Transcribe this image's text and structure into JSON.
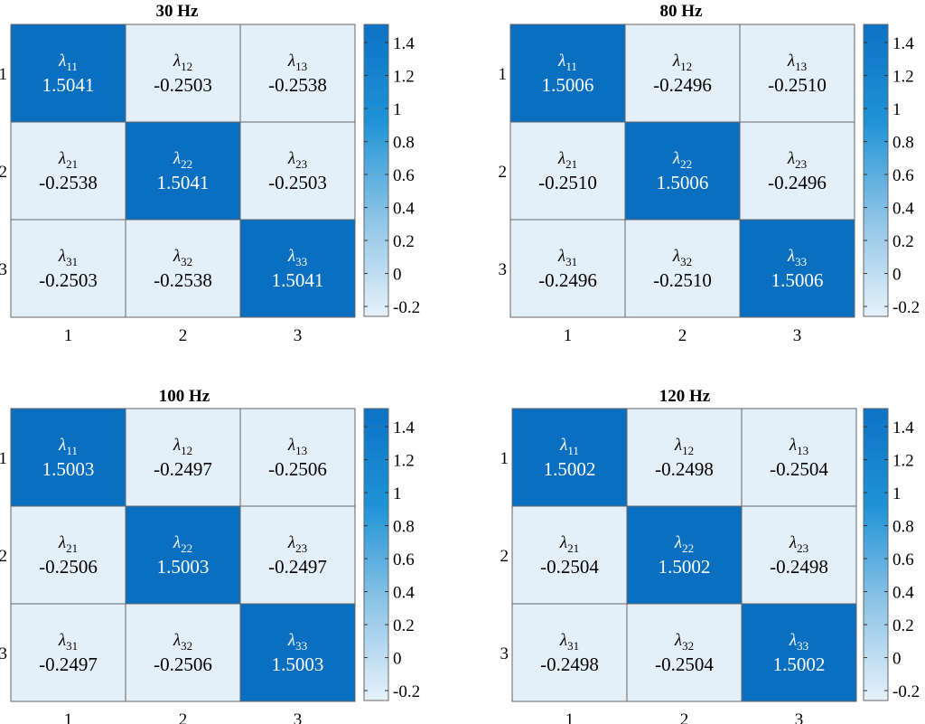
{
  "colors": {
    "low": "#e3f0f9",
    "high": "#0a6fc1",
    "colorbar_stops": [
      "#e6f1fa",
      "#8ec4e6",
      "#1f93d6",
      "#0c72c5"
    ],
    "grid": "#666666",
    "text_dark": "#000000",
    "text_light": "#ffffff"
  },
  "chart_data": [
    {
      "type": "heatmap",
      "title": "30 Hz",
      "x_ticks": [
        "1",
        "2",
        "3"
      ],
      "y_ticks": [
        "1",
        "2",
        "3"
      ],
      "cells": [
        [
          {
            "symbol": "λ",
            "sub": "11",
            "value": "1.5041"
          },
          {
            "symbol": "λ",
            "sub": "12",
            "value": "-0.2503"
          },
          {
            "symbol": "λ",
            "sub": "13",
            "value": "-0.2538"
          }
        ],
        [
          {
            "symbol": "λ",
            "sub": "21",
            "value": "-0.2538"
          },
          {
            "symbol": "λ",
            "sub": "22",
            "value": "1.5041"
          },
          {
            "symbol": "λ",
            "sub": "23",
            "value": "-0.2503"
          }
        ],
        [
          {
            "symbol": "λ",
            "sub": "31",
            "value": "-0.2503"
          },
          {
            "symbol": "λ",
            "sub": "32",
            "value": "-0.2538"
          },
          {
            "symbol": "λ",
            "sub": "33",
            "value": "1.5041"
          }
        ]
      ],
      "colorbar": {
        "ticks": [
          "1.4",
          "1.2",
          "1",
          "0.8",
          "0.6",
          "0.4",
          "0.2",
          "0",
          "-0.2"
        ],
        "range": [
          -0.26,
          1.51
        ]
      }
    },
    {
      "type": "heatmap",
      "title": "80 Hz",
      "x_ticks": [
        "1",
        "2",
        "3"
      ],
      "y_ticks": [
        "1",
        "2",
        "3"
      ],
      "cells": [
        [
          {
            "symbol": "λ",
            "sub": "11",
            "value": "1.5006"
          },
          {
            "symbol": "λ",
            "sub": "12",
            "value": "-0.2496"
          },
          {
            "symbol": "λ",
            "sub": "13",
            "value": "-0.2510"
          }
        ],
        [
          {
            "symbol": "λ",
            "sub": "21",
            "value": "-0.2510"
          },
          {
            "symbol": "λ",
            "sub": "22",
            "value": "1.5006"
          },
          {
            "symbol": "λ",
            "sub": "23",
            "value": "-0.2496"
          }
        ],
        [
          {
            "symbol": "λ",
            "sub": "31",
            "value": "-0.2496"
          },
          {
            "symbol": "λ",
            "sub": "32",
            "value": "-0.2510"
          },
          {
            "symbol": "λ",
            "sub": "33",
            "value": "1.5006"
          }
        ]
      ],
      "colorbar": {
        "ticks": [
          "1.4",
          "1.2",
          "1",
          "0.8",
          "0.6",
          "0.4",
          "0.2",
          "0",
          "-0.2"
        ],
        "range": [
          -0.26,
          1.51
        ]
      }
    },
    {
      "type": "heatmap",
      "title": "100 Hz",
      "x_ticks": [
        "1",
        "2",
        "3"
      ],
      "y_ticks": [
        "1",
        "2",
        "3"
      ],
      "cells": [
        [
          {
            "symbol": "λ",
            "sub": "11",
            "value": "1.5003"
          },
          {
            "symbol": "λ",
            "sub": "12",
            "value": "-0.2497"
          },
          {
            "symbol": "λ",
            "sub": "13",
            "value": "-0.2506"
          }
        ],
        [
          {
            "symbol": "λ",
            "sub": "21",
            "value": "-0.2506"
          },
          {
            "symbol": "λ",
            "sub": "22",
            "value": "1.5003"
          },
          {
            "symbol": "λ",
            "sub": "23",
            "value": "-0.2497"
          }
        ],
        [
          {
            "symbol": "λ",
            "sub": "31",
            "value": "-0.2497"
          },
          {
            "symbol": "λ",
            "sub": "32",
            "value": "-0.2506"
          },
          {
            "symbol": "λ",
            "sub": "33",
            "value": "1.5003"
          }
        ]
      ],
      "colorbar": {
        "ticks": [
          "1.4",
          "1.2",
          "1",
          "0.8",
          "0.6",
          "0.4",
          "0.2",
          "0",
          "-0.2"
        ],
        "range": [
          -0.26,
          1.51
        ]
      }
    },
    {
      "type": "heatmap",
      "title": "120 Hz",
      "x_ticks": [
        "1",
        "2",
        "3"
      ],
      "y_ticks": [
        "1",
        "2",
        "3"
      ],
      "cells": [
        [
          {
            "symbol": "λ",
            "sub": "11",
            "value": "1.5002"
          },
          {
            "symbol": "λ",
            "sub": "12",
            "value": "-0.2498"
          },
          {
            "symbol": "λ",
            "sub": "13",
            "value": "-0.2504"
          }
        ],
        [
          {
            "symbol": "λ",
            "sub": "21",
            "value": "-0.2504"
          },
          {
            "symbol": "λ",
            "sub": "22",
            "value": "1.5002"
          },
          {
            "symbol": "λ",
            "sub": "23",
            "value": "-0.2498"
          }
        ],
        [
          {
            "symbol": "λ",
            "sub": "31",
            "value": "-0.2498"
          },
          {
            "symbol": "λ",
            "sub": "32",
            "value": "-0.2504"
          },
          {
            "symbol": "λ",
            "sub": "33",
            "value": "1.5002"
          }
        ]
      ],
      "colorbar": {
        "ticks": [
          "1.4",
          "1.2",
          "1",
          "0.8",
          "0.6",
          "0.4",
          "0.2",
          "0",
          "-0.2"
        ],
        "range": [
          -0.26,
          1.51
        ]
      }
    }
  ]
}
